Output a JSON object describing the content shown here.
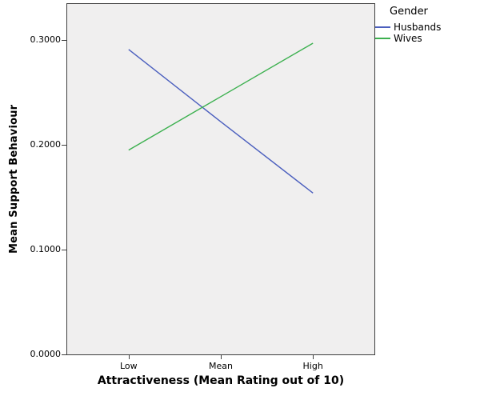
{
  "chart_data": {
    "type": "line",
    "categories": [
      "Low",
      "Mean",
      "High"
    ],
    "series": [
      {
        "name": "Husbands",
        "color": "#4b5fbe",
        "values": [
          0.291,
          0.222,
          0.154
        ]
      },
      {
        "name": "Wives",
        "color": "#3cb04f",
        "values": [
          0.195,
          0.246,
          0.297
        ]
      }
    ],
    "title": "",
    "xlabel": "Attractiveness (Mean Rating out of 10)",
    "ylabel": "Mean Support Behaviour",
    "ylim": [
      0,
      0.3344
    ],
    "yticks": [
      "0.0000",
      "0.1000",
      "0.2000",
      "0.3000"
    ],
    "legend": {
      "title": "Gender",
      "position": "top-right-outside"
    },
    "grid": false,
    "plot_background": "#f0efef",
    "frame_color": "#3f3f3f"
  }
}
